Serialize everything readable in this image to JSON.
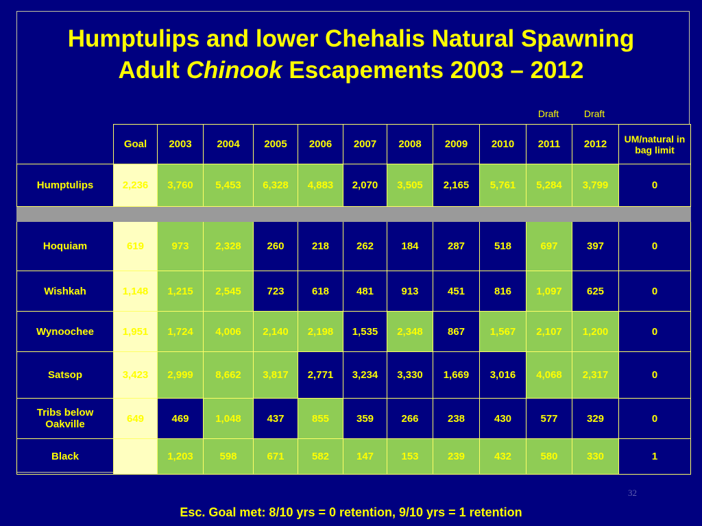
{
  "title": {
    "line1": "Humptulips and lower Chehalis Natural Spawning",
    "line2_pre": "Adult ",
    "line2_italic": "Chinook",
    "line2_post": " Escapements 2003 – 2012"
  },
  "draft_labels": [
    "Draft",
    "Draft"
  ],
  "table": {
    "headers": [
      "Goal",
      "2003",
      "2004",
      "2005",
      "2006",
      "2007",
      "2008",
      "2009",
      "2010",
      "2011",
      "2012",
      "UM/natural in bag limit"
    ],
    "rows": [
      {
        "name": "Humptulips",
        "values": [
          "2,236",
          "3,760",
          "5,453",
          "6,328",
          "4,883",
          "2,070",
          "3,505",
          "2,165",
          "5,761",
          "5,284",
          "3,799",
          "0"
        ]
      },
      {
        "name": "Hoquiam",
        "values": [
          "619",
          "973",
          "2,328",
          "260",
          "218",
          "262",
          "184",
          "287",
          "518",
          "697",
          "397",
          "0"
        ]
      },
      {
        "name": "Wishkah",
        "values": [
          "1,148",
          "1,215",
          "2,545",
          "723",
          "618",
          "481",
          "913",
          "451",
          "816",
          "1,097",
          "625",
          "0"
        ]
      },
      {
        "name": "Wynoochee",
        "values": [
          "1,951",
          "1,724",
          "4,006",
          "2,140",
          "2,198",
          "1,535",
          "2,348",
          "867",
          "1,567",
          "2,107",
          "1,200",
          "0"
        ]
      },
      {
        "name": "Satsop",
        "values": [
          "3,423",
          "2,999",
          "8,662",
          "3,817",
          "2,771",
          "3,234",
          "3,330",
          "1,669",
          "3,016",
          "4,068",
          "2,317",
          "0"
        ]
      },
      {
        "name": "Tribs below Oakville",
        "values": [
          "649",
          "469",
          "1,048",
          "437",
          "855",
          "359",
          "266",
          "238",
          "430",
          "577",
          "329",
          "0"
        ]
      },
      {
        "name": "Black",
        "values": [
          "",
          "1,203",
          "598",
          "671",
          "582",
          "147",
          "153",
          "239",
          "432",
          "580",
          "330",
          "1"
        ]
      }
    ]
  },
  "page_number": "32",
  "footer": "Esc. Goal met: 8/10 yrs = 0 retention, 9/10 yrs = 1 retention",
  "colors": {
    "background": "#000080",
    "text": "#ffff00",
    "goal_cell": "#ffffc0",
    "met_cell": "#8fcc55",
    "separator": "#9a9a9a"
  }
}
